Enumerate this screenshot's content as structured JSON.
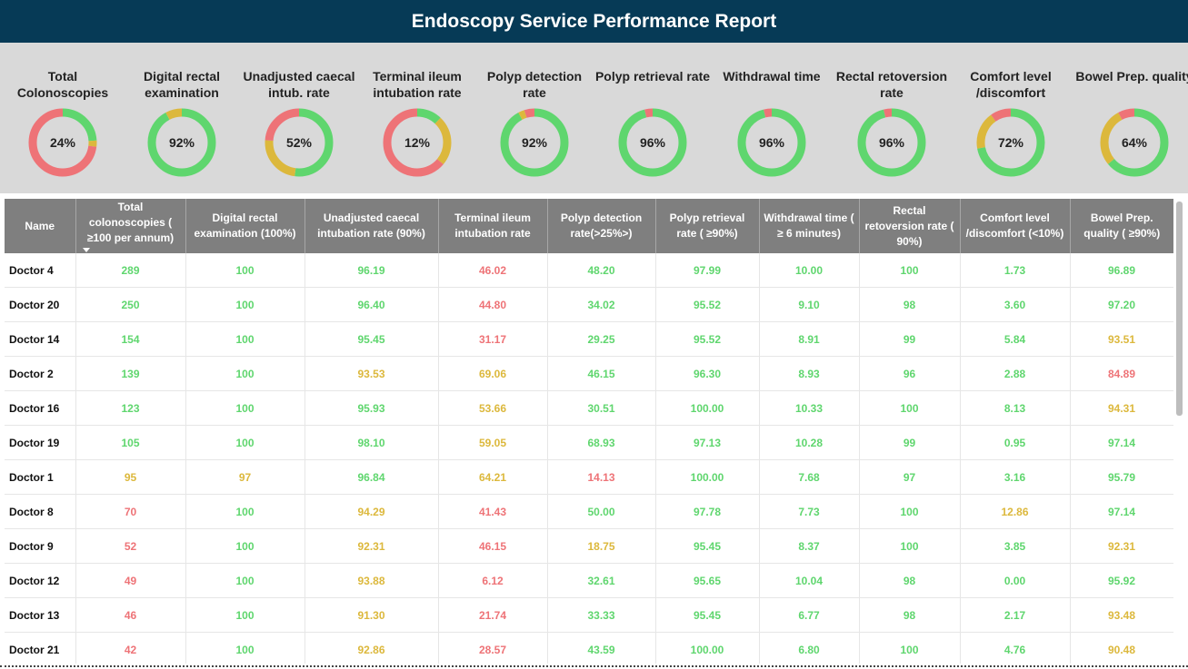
{
  "header": {
    "title": "Endoscopy Service Performance Report"
  },
  "colors": {
    "green": "#5fd66e",
    "yellow": "#dcb83c",
    "red": "#ee7377",
    "header_bg": "#063a56",
    "table_header": "#7f7f7f"
  },
  "kpis": [
    {
      "title": "Total Colonoscopies",
      "value": "24%",
      "segments": {
        "green": 24,
        "yellow": 3,
        "red": 73
      }
    },
    {
      "title": "Digital rectal examination",
      "value": "92%",
      "segments": {
        "green": 92,
        "yellow": 8,
        "red": 0
      }
    },
    {
      "title": "Unadjusted caecal intub. rate",
      "value": "52%",
      "segments": {
        "green": 52,
        "yellow": 24,
        "red": 24
      }
    },
    {
      "title": "Terminal ileum intubation rate",
      "value": "12%",
      "segments": {
        "green": 12,
        "yellow": 24,
        "red": 64
      }
    },
    {
      "title": "Polyp detection rate",
      "value": "92%",
      "segments": {
        "green": 92,
        "yellow": 3,
        "red": 5
      }
    },
    {
      "title": "Polyp retrieval rate",
      "value": "96%",
      "segments": {
        "green": 96,
        "yellow": 0,
        "red": 4
      }
    },
    {
      "title": "Withdrawal time",
      "value": "96%",
      "segments": {
        "green": 96,
        "yellow": 0,
        "red": 4
      }
    },
    {
      "title": "Rectal retoversion rate",
      "value": "96%",
      "segments": {
        "green": 96,
        "yellow": 0,
        "red": 4
      }
    },
    {
      "title": "Comfort level /discomfort",
      "value": "72%",
      "segments": {
        "green": 72,
        "yellow": 18,
        "red": 10
      }
    },
    {
      "title": "Bowel Prep. quality",
      "value": "64%",
      "segments": {
        "green": 64,
        "yellow": 28,
        "red": 8
      }
    }
  ],
  "table": {
    "columns": [
      "Name",
      "Total colonoscopies ( ≥100 per annum)",
      "Digital rectal examination (100%)",
      "Unadjusted caecal intubation rate (90%)",
      "Terminal ileum intubation rate",
      "Polyp detection rate(>25%>)",
      "Polyp retrieval rate ( ≥90%)",
      "Withdrawal time ( ≥ 6 minutes)",
      "Rectal retoversion rate ( 90%)",
      "Comfort level /discomfort (<10%)",
      "Bowel Prep. quality ( ≥90%)"
    ],
    "rows": [
      {
        "name": "Doctor 4",
        "cells": [
          {
            "v": "289",
            "c": "g"
          },
          {
            "v": "100",
            "c": "g"
          },
          {
            "v": "96.19",
            "c": "g"
          },
          {
            "v": "46.02",
            "c": "r"
          },
          {
            "v": "48.20",
            "c": "g"
          },
          {
            "v": "97.99",
            "c": "g"
          },
          {
            "v": "10.00",
            "c": "g"
          },
          {
            "v": "100",
            "c": "g"
          },
          {
            "v": "1.73",
            "c": "g"
          },
          {
            "v": "96.89",
            "c": "g"
          }
        ]
      },
      {
        "name": "Doctor 20",
        "cells": [
          {
            "v": "250",
            "c": "g"
          },
          {
            "v": "100",
            "c": "g"
          },
          {
            "v": "96.40",
            "c": "g"
          },
          {
            "v": "44.80",
            "c": "r"
          },
          {
            "v": "34.02",
            "c": "g"
          },
          {
            "v": "95.52",
            "c": "g"
          },
          {
            "v": "9.10",
            "c": "g"
          },
          {
            "v": "98",
            "c": "g"
          },
          {
            "v": "3.60",
            "c": "g"
          },
          {
            "v": "97.20",
            "c": "g"
          }
        ]
      },
      {
        "name": "Doctor 14",
        "cells": [
          {
            "v": "154",
            "c": "g"
          },
          {
            "v": "100",
            "c": "g"
          },
          {
            "v": "95.45",
            "c": "g"
          },
          {
            "v": "31.17",
            "c": "r"
          },
          {
            "v": "29.25",
            "c": "g"
          },
          {
            "v": "95.52",
            "c": "g"
          },
          {
            "v": "8.91",
            "c": "g"
          },
          {
            "v": "99",
            "c": "g"
          },
          {
            "v": "5.84",
            "c": "g"
          },
          {
            "v": "93.51",
            "c": "y"
          }
        ]
      },
      {
        "name": "Doctor 2",
        "cells": [
          {
            "v": "139",
            "c": "g"
          },
          {
            "v": "100",
            "c": "g"
          },
          {
            "v": "93.53",
            "c": "y"
          },
          {
            "v": "69.06",
            "c": "y"
          },
          {
            "v": "46.15",
            "c": "g"
          },
          {
            "v": "96.30",
            "c": "g"
          },
          {
            "v": "8.93",
            "c": "g"
          },
          {
            "v": "96",
            "c": "g"
          },
          {
            "v": "2.88",
            "c": "g"
          },
          {
            "v": "84.89",
            "c": "r"
          }
        ]
      },
      {
        "name": "Doctor 16",
        "cells": [
          {
            "v": "123",
            "c": "g"
          },
          {
            "v": "100",
            "c": "g"
          },
          {
            "v": "95.93",
            "c": "g"
          },
          {
            "v": "53.66",
            "c": "y"
          },
          {
            "v": "30.51",
            "c": "g"
          },
          {
            "v": "100.00",
            "c": "g"
          },
          {
            "v": "10.33",
            "c": "g"
          },
          {
            "v": "100",
            "c": "g"
          },
          {
            "v": "8.13",
            "c": "g"
          },
          {
            "v": "94.31",
            "c": "y"
          }
        ]
      },
      {
        "name": "Doctor 19",
        "cells": [
          {
            "v": "105",
            "c": "g"
          },
          {
            "v": "100",
            "c": "g"
          },
          {
            "v": "98.10",
            "c": "g"
          },
          {
            "v": "59.05",
            "c": "y"
          },
          {
            "v": "68.93",
            "c": "g"
          },
          {
            "v": "97.13",
            "c": "g"
          },
          {
            "v": "10.28",
            "c": "g"
          },
          {
            "v": "99",
            "c": "g"
          },
          {
            "v": "0.95",
            "c": "g"
          },
          {
            "v": "97.14",
            "c": "g"
          }
        ]
      },
      {
        "name": "Doctor 1",
        "cells": [
          {
            "v": "95",
            "c": "y"
          },
          {
            "v": "97",
            "c": "y"
          },
          {
            "v": "96.84",
            "c": "g"
          },
          {
            "v": "64.21",
            "c": "y"
          },
          {
            "v": "14.13",
            "c": "r"
          },
          {
            "v": "100.00",
            "c": "g"
          },
          {
            "v": "7.68",
            "c": "g"
          },
          {
            "v": "97",
            "c": "g"
          },
          {
            "v": "3.16",
            "c": "g"
          },
          {
            "v": "95.79",
            "c": "g"
          }
        ]
      },
      {
        "name": "Doctor 8",
        "cells": [
          {
            "v": "70",
            "c": "r"
          },
          {
            "v": "100",
            "c": "g"
          },
          {
            "v": "94.29",
            "c": "y"
          },
          {
            "v": "41.43",
            "c": "r"
          },
          {
            "v": "50.00",
            "c": "g"
          },
          {
            "v": "97.78",
            "c": "g"
          },
          {
            "v": "7.73",
            "c": "g"
          },
          {
            "v": "100",
            "c": "g"
          },
          {
            "v": "12.86",
            "c": "y"
          },
          {
            "v": "97.14",
            "c": "g"
          }
        ]
      },
      {
        "name": "Doctor 9",
        "cells": [
          {
            "v": "52",
            "c": "r"
          },
          {
            "v": "100",
            "c": "g"
          },
          {
            "v": "92.31",
            "c": "y"
          },
          {
            "v": "46.15",
            "c": "r"
          },
          {
            "v": "18.75",
            "c": "y"
          },
          {
            "v": "95.45",
            "c": "g"
          },
          {
            "v": "8.37",
            "c": "g"
          },
          {
            "v": "100",
            "c": "g"
          },
          {
            "v": "3.85",
            "c": "g"
          },
          {
            "v": "92.31",
            "c": "y"
          }
        ]
      },
      {
        "name": "Doctor 12",
        "cells": [
          {
            "v": "49",
            "c": "r"
          },
          {
            "v": "100",
            "c": "g"
          },
          {
            "v": "93.88",
            "c": "y"
          },
          {
            "v": "6.12",
            "c": "r"
          },
          {
            "v": "32.61",
            "c": "g"
          },
          {
            "v": "95.65",
            "c": "g"
          },
          {
            "v": "10.04",
            "c": "g"
          },
          {
            "v": "98",
            "c": "g"
          },
          {
            "v": "0.00",
            "c": "g"
          },
          {
            "v": "95.92",
            "c": "g"
          }
        ]
      },
      {
        "name": "Doctor 13",
        "cells": [
          {
            "v": "46",
            "c": "r"
          },
          {
            "v": "100",
            "c": "g"
          },
          {
            "v": "91.30",
            "c": "y"
          },
          {
            "v": "21.74",
            "c": "r"
          },
          {
            "v": "33.33",
            "c": "g"
          },
          {
            "v": "95.45",
            "c": "g"
          },
          {
            "v": "6.77",
            "c": "g"
          },
          {
            "v": "98",
            "c": "g"
          },
          {
            "v": "2.17",
            "c": "g"
          },
          {
            "v": "93.48",
            "c": "y"
          }
        ]
      },
      {
        "name": "Doctor 21",
        "cells": [
          {
            "v": "42",
            "c": "r"
          },
          {
            "v": "100",
            "c": "g"
          },
          {
            "v": "92.86",
            "c": "y"
          },
          {
            "v": "28.57",
            "c": "r"
          },
          {
            "v": "43.59",
            "c": "g"
          },
          {
            "v": "100.00",
            "c": "g"
          },
          {
            "v": "6.80",
            "c": "g"
          },
          {
            "v": "100",
            "c": "g"
          },
          {
            "v": "4.76",
            "c": "g"
          },
          {
            "v": "90.48",
            "c": "y"
          }
        ]
      }
    ]
  }
}
